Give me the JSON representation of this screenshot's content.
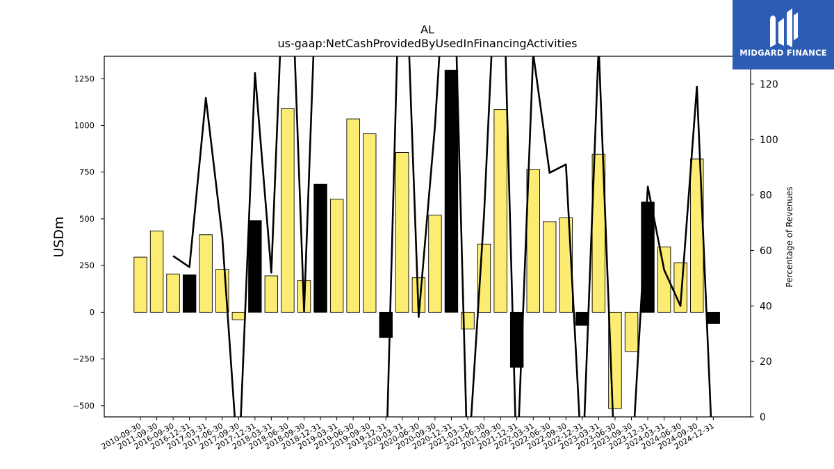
{
  "chart_data": {
    "type": "bar",
    "title": "AL",
    "subtitle": "us-gaap:NetCashProvidedByUsedInFinancingActivities",
    "ylabel": "USDm",
    "y2label": "Percentage of Revenues",
    "ylim": [
      -560,
      1370
    ],
    "y2lim": [
      0,
      130
    ],
    "yticks": [
      -500,
      -250,
      0,
      250,
      500,
      750,
      1000,
      1250
    ],
    "y2ticks": [
      0,
      20,
      40,
      60,
      80,
      100,
      120
    ],
    "categories": [
      "2010-09-30",
      "2011-09-30",
      "2016-09-30",
      "2016-12-31",
      "2017-03-31",
      "2017-06-30",
      "2017-09-30",
      "2017-12-31",
      "2018-03-31",
      "2018-06-30",
      "2018-09-30",
      "2018-12-31",
      "2019-03-31",
      "2019-06-30",
      "2019-09-30",
      "2019-12-31",
      "2020-03-31",
      "2020-06-30",
      "2020-09-30",
      "2020-12-31",
      "2021-03-31",
      "2021-06-30",
      "2021-09-30",
      "2021-12-31",
      "2022-03-31",
      "2022-06-30",
      "2022-09-30",
      "2022-12-31",
      "2023-03-31",
      "2023-06-30",
      "2023-09-30",
      "2023-12-31",
      "2024-03-31",
      "2024-06-30",
      "2024-09-30",
      "2024-12-31"
    ],
    "series": [
      {
        "values": [
          295,
          435,
          205,
          200,
          415,
          230,
          -40,
          490,
          195,
          1090,
          170,
          685,
          605,
          1035,
          955,
          -135,
          855,
          185,
          520,
          1295,
          -90,
          365,
          1085,
          -295,
          765,
          485,
          505,
          -70,
          845,
          -515,
          -210,
          590,
          350,
          265,
          820,
          -60
        ],
        "highlight": [
          false,
          false,
          false,
          true,
          false,
          false,
          false,
          true,
          false,
          false,
          false,
          true,
          false,
          false,
          false,
          true,
          false,
          false,
          false,
          true,
          false,
          false,
          false,
          true,
          false,
          false,
          false,
          true,
          false,
          false,
          false,
          true,
          false,
          false,
          false,
          true
        ]
      },
      {
        "axis": "right",
        "type": "line",
        "values": [
          null,
          null,
          58,
          54,
          115,
          65,
          -20,
          124,
          52,
          200,
          38,
          200,
          null,
          null,
          null,
          -20,
          200,
          36,
          105,
          200,
          -20,
          73,
          200,
          -20,
          131,
          88,
          91,
          -20,
          134,
          -20,
          -20,
          83,
          53,
          40,
          119,
          -20
        ]
      }
    ],
    "colors": {
      "bar": "#fcec72",
      "highlight": "#000000",
      "line": "#000000"
    }
  },
  "brand": {
    "name": "MIDGARD FINANCE",
    "background": "#2c5cb4"
  }
}
